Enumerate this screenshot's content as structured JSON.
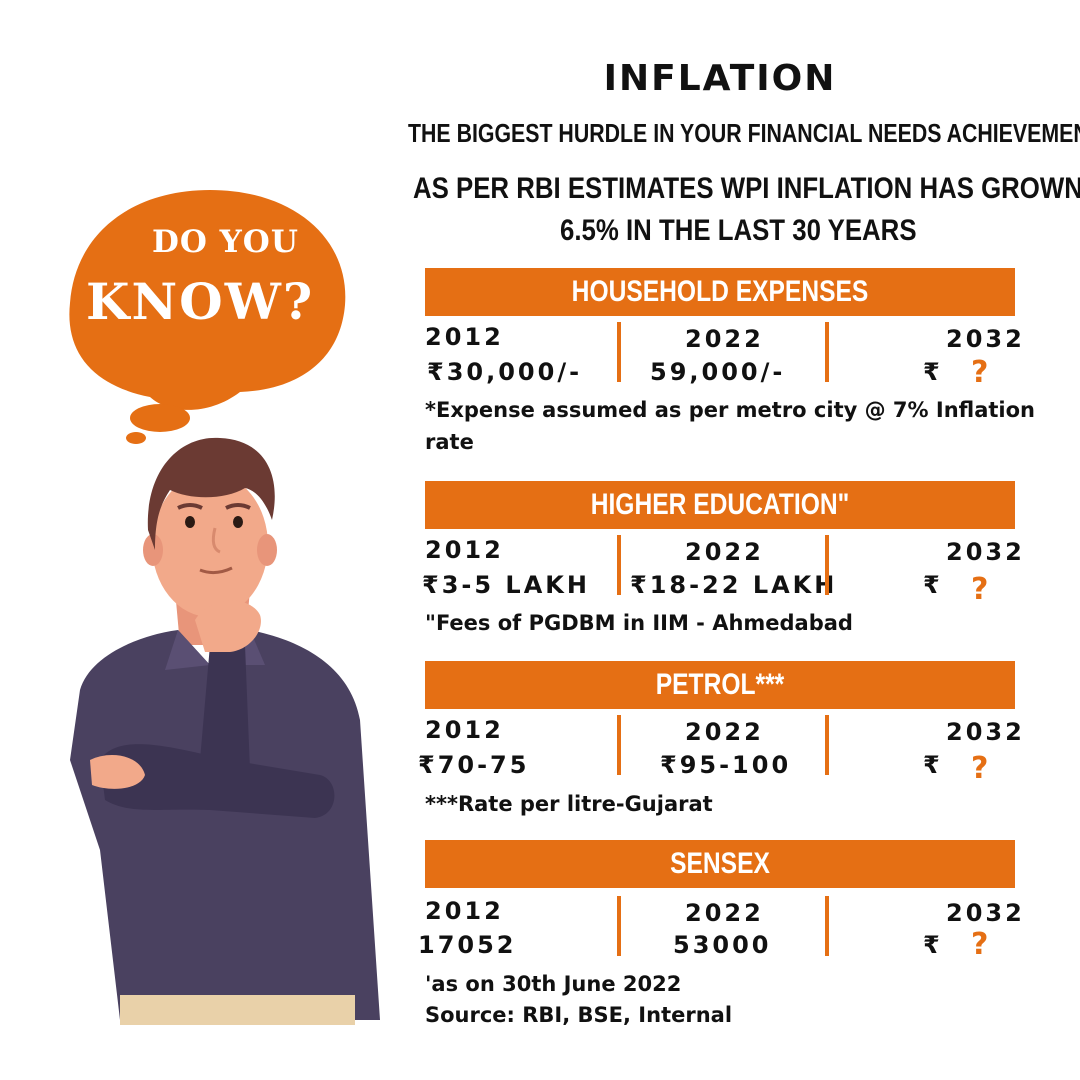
{
  "header": {
    "title": "INFLATION",
    "subtitle": "THE BIGGEST HURDLE IN YOUR FINANCIAL NEEDS ACHIEVEMENT",
    "estimate_line1": "AS PER RBI ESTIMATES WPI INFLATION HAS GROWN BY",
    "estimate_line2": "6.5% IN THE LAST 30 YEARS"
  },
  "bubble": {
    "line1": "DO YOU",
    "line2": "KNOW?"
  },
  "sections": [
    {
      "heading": "HOUSEHOLD EXPENSES",
      "years": [
        "2012",
        "2022",
        "2032"
      ],
      "values": [
        "₹30,000/-",
        "59,000/-",
        "₹"
      ],
      "question": "?",
      "note": "*Expense assumed as per metro city @ 7% Inflation rate"
    },
    {
      "heading": "HIGHER EDUCATION\"",
      "years": [
        "2012",
        "2022",
        "2032"
      ],
      "values": [
        "₹3-5 LAKH",
        "₹18-22 LAKH",
        "₹"
      ],
      "question": "?",
      "note": "\"Fees of PGDBM in IIM - Ahmedabad"
    },
    {
      "heading": "PETROL***",
      "years": [
        "2012",
        "2022",
        "2032"
      ],
      "values": [
        "₹70-75",
        "₹95-100",
        "₹"
      ],
      "question": "?",
      "note": "***Rate per litre-Gujarat"
    },
    {
      "heading": "SENSEX",
      "years": [
        "2012",
        "2022",
        "2032"
      ],
      "values": [
        "17052",
        "53000",
        "₹"
      ],
      "question": "?",
      "note": "'as on 30th June 2022",
      "source": "Source: RBI, BSE, Internal"
    }
  ],
  "colors": {
    "accent": "#e56f14",
    "shirt": "#4a4160",
    "skin": "#f2a98a",
    "hair": "#6b3a33"
  }
}
